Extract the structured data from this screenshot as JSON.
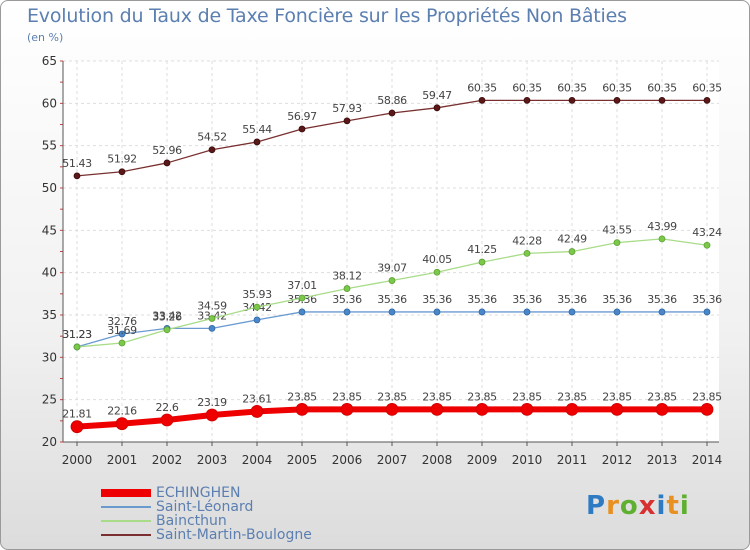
{
  "title": "Evolution du Taux de Taxe Foncière sur les Propriétés Non Bâties",
  "unit": "(en %)",
  "logo": {
    "text": "Proxiti",
    "colors": [
      "#2e7bc4",
      "#e89020",
      "#5fb030",
      "#d83030",
      "#2e7bc4",
      "#e89020",
      "#5fb030"
    ]
  },
  "chart_data": {
    "type": "line",
    "x": [
      2000,
      2001,
      2002,
      2003,
      2004,
      2005,
      2006,
      2007,
      2008,
      2009,
      2010,
      2011,
      2012,
      2013,
      2014
    ],
    "ylim": [
      20,
      65
    ],
    "yticks": [
      20,
      25,
      30,
      35,
      40,
      45,
      50,
      55,
      60,
      65
    ],
    "grid": true,
    "series": [
      {
        "name": "Saint-Martin-Boulogne",
        "color": "#6b2222",
        "values": [
          51.43,
          51.92,
          52.96,
          54.52,
          55.44,
          56.97,
          57.93,
          58.86,
          59.47,
          60.35,
          60.35,
          60.35,
          60.35,
          60.35,
          60.35
        ]
      },
      {
        "name": "Saint-Léonard",
        "color": "#5b8ec8",
        "values": [
          31.23,
          32.76,
          33.42,
          33.42,
          34.42,
          35.36,
          35.36,
          35.36,
          35.36,
          35.36,
          35.36,
          35.36,
          35.36,
          35.36,
          35.36
        ]
      },
      {
        "name": "Baincthun",
        "color": "#8ed060",
        "values": [
          31.23,
          31.69,
          33.26,
          34.59,
          35.93,
          37.01,
          38.12,
          39.07,
          40.05,
          41.25,
          42.28,
          42.49,
          43.55,
          43.99,
          43.24
        ]
      },
      {
        "name": "ECHINGHEN",
        "color": "#ee0000",
        "values": [
          21.81,
          22.16,
          22.6,
          23.19,
          23.61,
          23.85,
          23.85,
          23.85,
          23.85,
          23.85,
          23.85,
          23.85,
          23.85,
          23.85,
          23.85
        ]
      }
    ],
    "legend": [
      "ECHINGHEN",
      "Saint-Léonard",
      "Baincthun",
      "Saint-Martin-Boulogne"
    ],
    "legend_position": "bottom-left"
  }
}
